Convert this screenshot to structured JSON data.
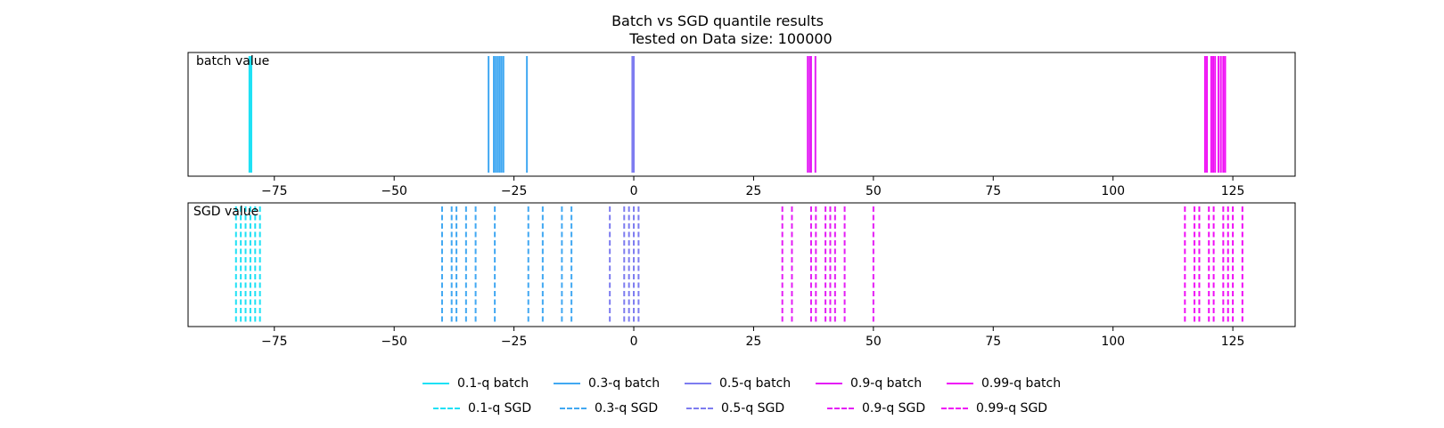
{
  "chart_data": [
    {
      "type": "event-lines",
      "title": "Batch vs SGD quantile results",
      "subtitle": "Tested on Data size: 100000",
      "panel_label": "batch value",
      "linestyle": "solid",
      "xlim": [
        -93,
        138
      ],
      "xticks": [
        -75,
        -50,
        -25,
        0,
        25,
        50,
        75,
        100,
        125
      ],
      "tick_labels": [
        "−75",
        "−50",
        "−25",
        "0",
        "25",
        "50",
        "75",
        "100",
        "125"
      ],
      "series": [
        {
          "name": "0.1-q batch",
          "color": "#1ee1f5",
          "values": [
            -80.2,
            -80.0,
            -79.8
          ]
        },
        {
          "name": "0.3-q batch",
          "color": "#41a8f2",
          "values": [
            -30.3,
            -29.2,
            -28.8,
            -28.4,
            -28.0,
            -27.6,
            -27.2,
            -22.3
          ]
        },
        {
          "name": "0.5-q batch",
          "color": "#7d7cf0",
          "values": [
            -0.3,
            0.0
          ]
        },
        {
          "name": "0.9-q batch",
          "color": "#e41ef5",
          "values": [
            36.3,
            36.7,
            37.0,
            37.9
          ]
        },
        {
          "name": "0.99-q batch",
          "color": "#f00ef6",
          "values": [
            119.2,
            119.6,
            120.5,
            120.9,
            121.3,
            122.0,
            122.5,
            123.0,
            123.4
          ]
        }
      ]
    },
    {
      "type": "event-lines",
      "panel_label": "SGD value",
      "linestyle": "dashed",
      "xlim": [
        -93,
        138
      ],
      "xticks": [
        -75,
        -50,
        -25,
        0,
        25,
        50,
        75,
        100,
        125
      ],
      "tick_labels": [
        "−75",
        "−50",
        "−25",
        "0",
        "25",
        "50",
        "75",
        "100",
        "125"
      ],
      "series": [
        {
          "name": "0.1-q SGD",
          "color": "#1ee1f5",
          "values": [
            -83.0,
            -82.0,
            -81.0,
            -80.0,
            -79.0,
            -78.0
          ]
        },
        {
          "name": "0.3-q SGD",
          "color": "#41a8f2",
          "values": [
            -40.0,
            -38.0,
            -37.0,
            -35.0,
            -33.0,
            -29.0,
            -22.0,
            -19.0,
            -15.0,
            -13.0
          ]
        },
        {
          "name": "0.5-q SGD",
          "color": "#7d7cf0",
          "values": [
            -5.0,
            -2.0,
            -1.0,
            0.0,
            1.0
          ]
        },
        {
          "name": "0.9-q SGD",
          "color": "#e41ef5",
          "values": [
            31.0,
            33.0,
            37.0,
            38.0,
            40.0,
            41.0,
            42.0,
            44.0,
            50.0
          ]
        },
        {
          "name": "0.99-q SGD",
          "color": "#f00ef6",
          "values": [
            115.0,
            117.0,
            118.0,
            120.0,
            121.0,
            123.0,
            124.0,
            125.0,
            127.0
          ]
        }
      ]
    }
  ]
}
